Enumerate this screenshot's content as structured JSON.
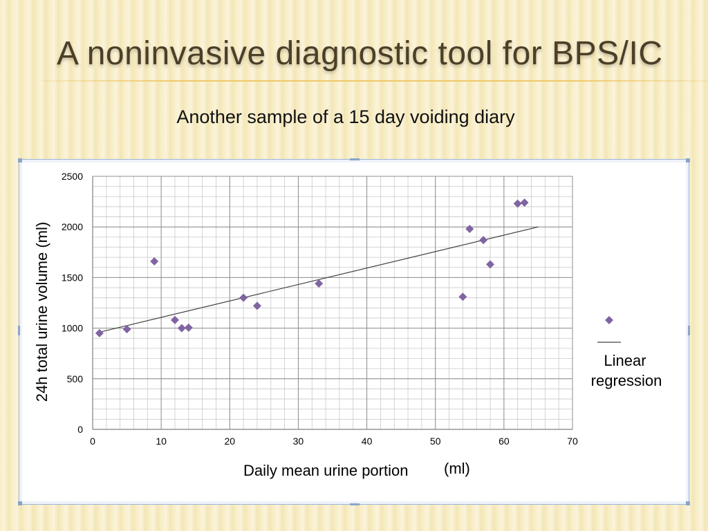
{
  "slide": {
    "title": "A noninvasive diagnostic tool for BPS/IC",
    "subtitle": "Another sample of a 15 day voiding diary"
  },
  "chart_data": {
    "type": "scatter",
    "xlabel": "Daily mean urine portion",
    "xlabel_unit": "(ml)",
    "ylabel": "24h total urine volume (ml)",
    "xlim": [
      0,
      70
    ],
    "ylim": [
      0,
      2500
    ],
    "x_ticks": [
      0,
      10,
      20,
      30,
      40,
      50,
      60,
      70
    ],
    "y_ticks": [
      0,
      500,
      1000,
      1500,
      2000,
      2500
    ],
    "grid": true,
    "legend_position": "right",
    "series": [
      {
        "kind": "points",
        "color": "#8064a2",
        "marker": "diamond",
        "points": [
          {
            "x": 1,
            "y": 950
          },
          {
            "x": 5,
            "y": 990
          },
          {
            "x": 9,
            "y": 1660
          },
          {
            "x": 12,
            "y": 1080
          },
          {
            "x": 13,
            "y": 1000
          },
          {
            "x": 14,
            "y": 1005
          },
          {
            "x": 22,
            "y": 1300
          },
          {
            "x": 24,
            "y": 1220
          },
          {
            "x": 33,
            "y": 1440
          },
          {
            "x": 54,
            "y": 1310
          },
          {
            "x": 55,
            "y": 1980
          },
          {
            "x": 57,
            "y": 1870
          },
          {
            "x": 58,
            "y": 1630
          },
          {
            "x": 62,
            "y": 2230
          },
          {
            "x": 63,
            "y": 2240
          }
        ]
      },
      {
        "kind": "line",
        "name": "Linear regression",
        "color": "#404040",
        "points": [
          {
            "x": 1,
            "y": 960
          },
          {
            "x": 65,
            "y": 2000
          }
        ]
      }
    ],
    "legend": {
      "line_label_1": "Linear",
      "line_label_2": "regression"
    }
  }
}
